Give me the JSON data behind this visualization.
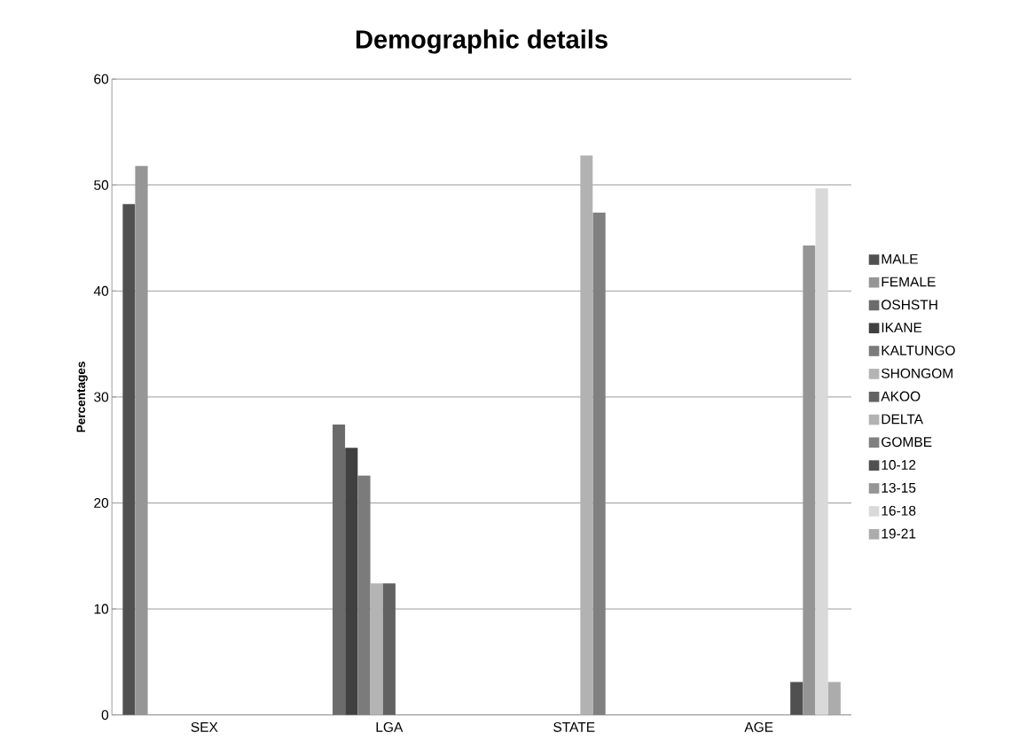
{
  "chart_data": {
    "type": "bar",
    "title": "Demographic details",
    "ylabel": "Percentages",
    "categories": [
      "SEX",
      "LGA",
      "STATE",
      "AGE"
    ],
    "series": [
      {
        "name": "MALE",
        "color": "#505050",
        "values": [
          48.2,
          null,
          null,
          null
        ]
      },
      {
        "name": "FEMALE",
        "color": "#969696",
        "values": [
          51.8,
          null,
          null,
          null
        ]
      },
      {
        "name": "OSHSTH",
        "color": "#6b6b6b",
        "values": [
          null,
          27.4,
          null,
          null
        ]
      },
      {
        "name": "IKANE",
        "color": "#404040",
        "values": [
          null,
          25.2,
          null,
          null
        ]
      },
      {
        "name": "KALTUNGO",
        "color": "#7b7b7b",
        "values": [
          null,
          22.6,
          null,
          null
        ]
      },
      {
        "name": "SHONGOM",
        "color": "#b4b4b4",
        "values": [
          null,
          12.4,
          null,
          null
        ]
      },
      {
        "name": "AKOO",
        "color": "#626262",
        "values": [
          null,
          12.4,
          null,
          null
        ]
      },
      {
        "name": "DELTA",
        "color": "#b2b2b2",
        "values": [
          null,
          null,
          52.8,
          null
        ]
      },
      {
        "name": "GOMBE",
        "color": "#808080",
        "values": [
          null,
          null,
          47.4,
          null
        ]
      },
      {
        "name": "10-12",
        "color": "#505050",
        "values": [
          null,
          null,
          null,
          3.1
        ]
      },
      {
        "name": "13-15",
        "color": "#959595",
        "values": [
          null,
          null,
          null,
          44.3
        ]
      },
      {
        "name": "16-18",
        "color": "#d9d9d9",
        "values": [
          null,
          null,
          null,
          49.7
        ]
      },
      {
        "name": "19-21",
        "color": "#acacac",
        "values": [
          null,
          null,
          null,
          3.1
        ]
      }
    ],
    "ylim": [
      0,
      60
    ],
    "yticks": [
      0,
      10,
      20,
      30,
      40,
      50,
      60
    ],
    "grid": "y",
    "legend": "right"
  }
}
